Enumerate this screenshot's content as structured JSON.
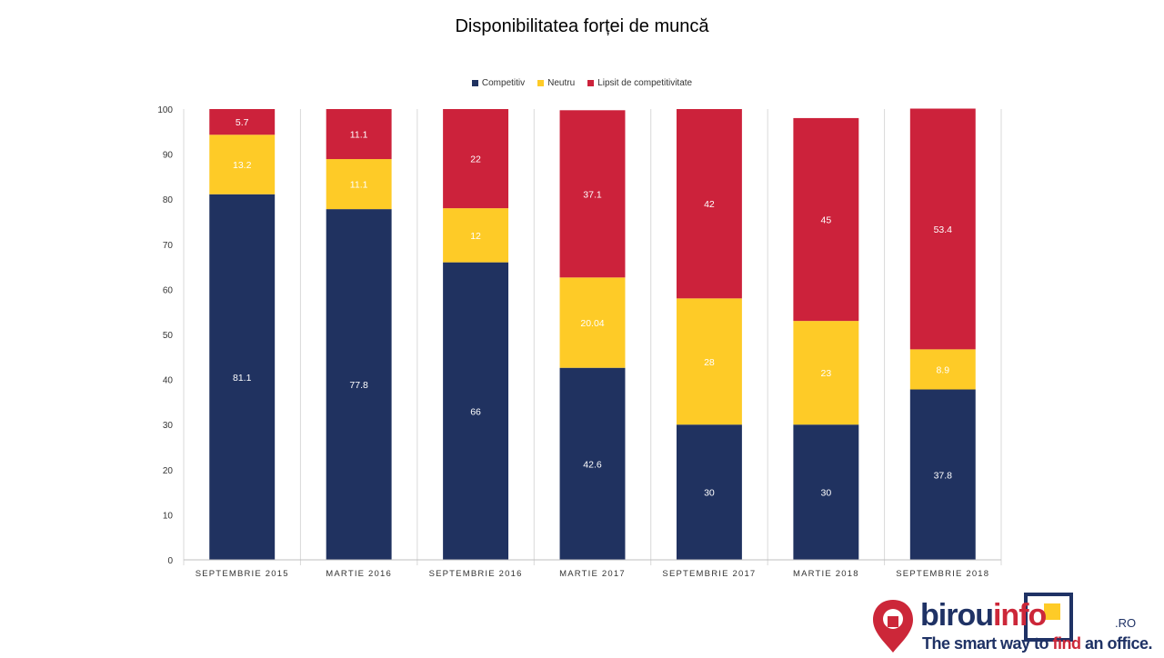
{
  "chart_data": {
    "type": "bar",
    "stacked": true,
    "title": "Disponibilitatea forței de muncă",
    "categories": [
      "SEPTEMBRIE 2015",
      "MARTIE 2016",
      "SEPTEMBRIE 2016",
      "MARTIE 2017",
      "SEPTEMBRIE 2017",
      "MARTIE 2018",
      "SEPTEMBRIE 2018"
    ],
    "series": [
      {
        "name": "Competitiv",
        "color": "#203260",
        "values": [
          81.1,
          77.8,
          66,
          42.6,
          30,
          30,
          37.8
        ],
        "labels": [
          "81.1",
          "77.8",
          "66",
          "42.6",
          "30",
          "30",
          "37.8"
        ]
      },
      {
        "name": "Neutru",
        "color": "#fecb27",
        "values": [
          13.2,
          11.1,
          12,
          20.04,
          28,
          23,
          8.9
        ],
        "labels": [
          "13.2",
          "11.1",
          "12",
          "20.04",
          "28",
          "23",
          "8.9"
        ]
      },
      {
        "name": "Lipsit de competitivitate",
        "color": "#cc223b",
        "values": [
          5.7,
          11.1,
          22,
          37.1,
          42,
          45,
          53.4
        ],
        "labels": [
          "5.7",
          "11.1",
          "22",
          "37.1",
          "42",
          "45",
          "53.4"
        ]
      }
    ],
    "ylim": [
      0,
      100
    ],
    "yticks": [
      "0",
      "10",
      "20",
      "30",
      "40",
      "50",
      "60",
      "70",
      "80",
      "90",
      "100"
    ],
    "legend_position": "top",
    "grid": false
  },
  "logo": {
    "name_main": "birou",
    "name_accent": "info",
    "suffix": ".RO",
    "tagline_start": "The smart way to ",
    "tagline_accent": "find",
    "tagline_end": " an office."
  }
}
